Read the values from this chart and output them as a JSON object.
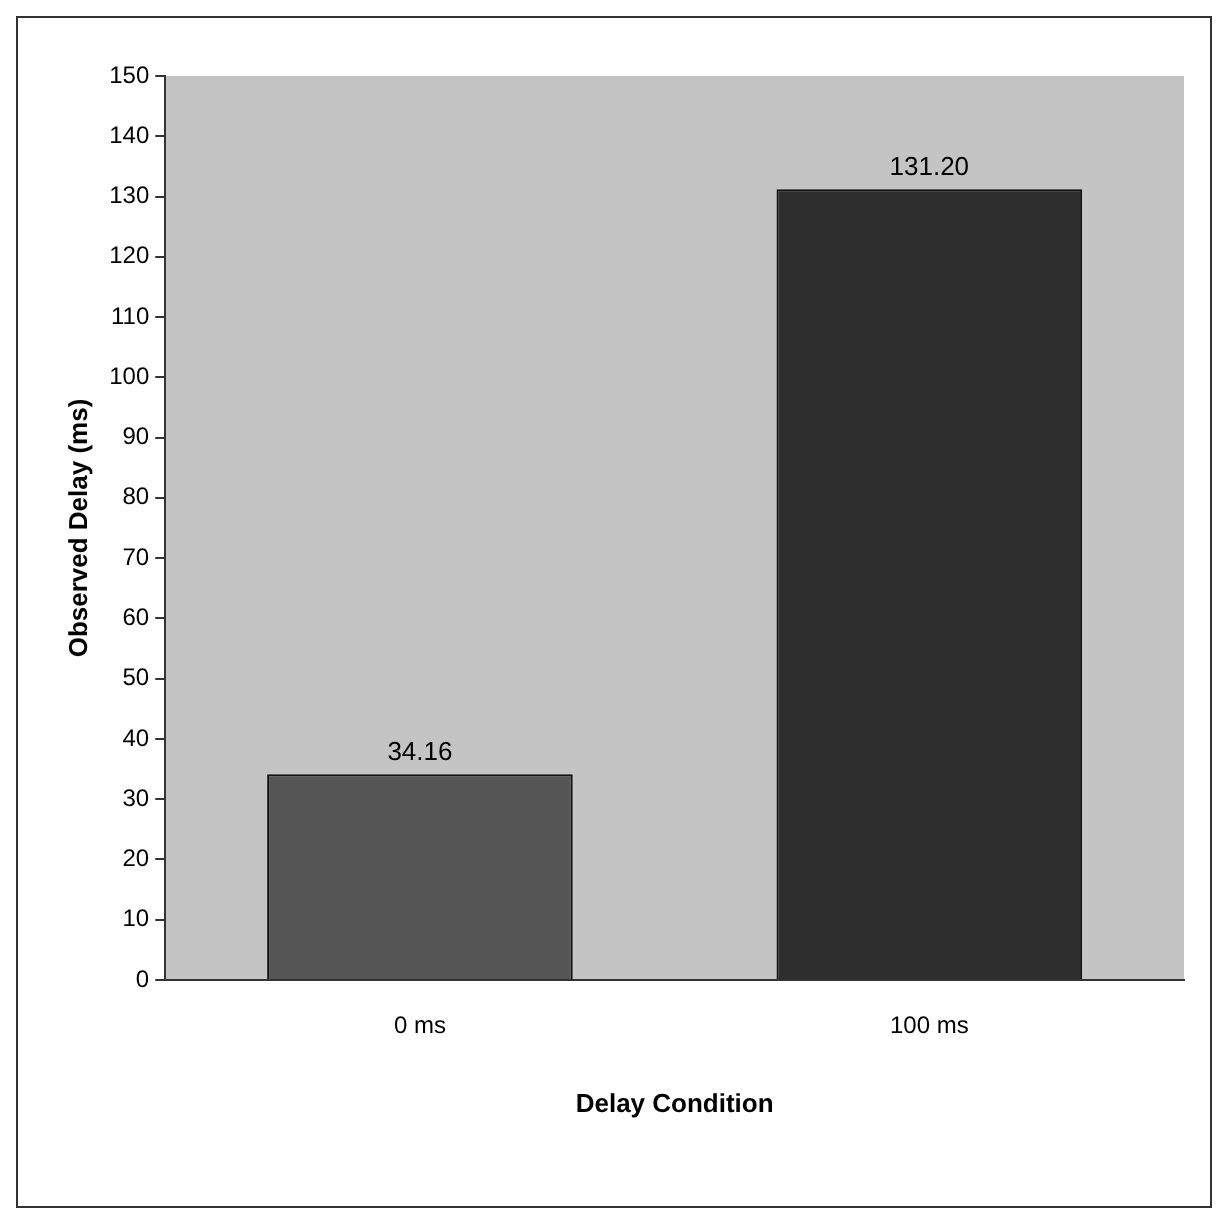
{
  "chart_data": {
    "type": "bar",
    "xlabel": "Delay Condition",
    "ylabel": "Observed Delay (ms)",
    "categories": [
      "0 ms",
      "100 ms"
    ],
    "values": [
      34.16,
      131.2
    ],
    "value_labels": [
      "34.16",
      "131.20"
    ],
    "colors": [
      "#555555",
      "#2e2e2e"
    ],
    "ylim": [
      0,
      150
    ],
    "yticks": [
      0,
      10,
      20,
      30,
      40,
      50,
      60,
      70,
      80,
      90,
      100,
      110,
      120,
      130,
      140,
      150
    ],
    "grid": false,
    "legend": false
  }
}
